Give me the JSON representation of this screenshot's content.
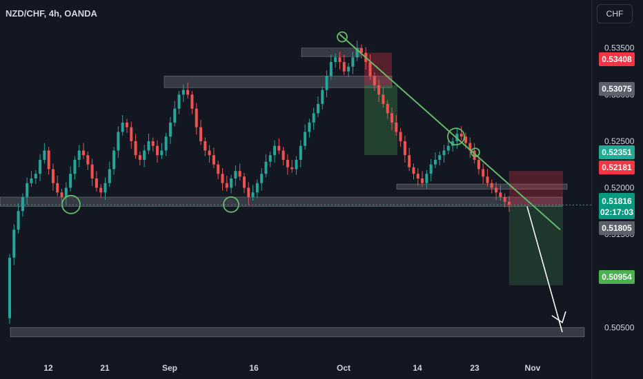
{
  "header": {
    "title": "NZD/CHF, 4h, OANDA"
  },
  "currency_button": "CHF",
  "colors": {
    "bg": "#131722",
    "up": "#26a69a",
    "down": "#ef5350",
    "trendline": "#66bb6a"
  },
  "chart_data": {
    "type": "candlestick",
    "title": "NZD/CHF, 4h, OANDA",
    "y_unit": "CHF",
    "ylim": [
      0.5028,
      0.5372
    ],
    "y_ticks": [
      "0.53500",
      "0.53000",
      "0.52500",
      "0.52000",
      "0.51500",
      "0.51000",
      "0.50500"
    ],
    "x_ticks": [
      "12",
      "21",
      "Sep",
      "16",
      "Oct",
      "14",
      "23",
      "Nov"
    ],
    "closes": [
      0.5125,
      0.5155,
      0.5175,
      0.519,
      0.5205,
      0.521,
      0.5215,
      0.523,
      0.524,
      0.522,
      0.5205,
      0.5195,
      0.519,
      0.52,
      0.5215,
      0.523,
      0.524,
      0.5235,
      0.5225,
      0.521,
      0.52,
      0.5195,
      0.5205,
      0.522,
      0.524,
      0.526,
      0.527,
      0.5265,
      0.525,
      0.5235,
      0.523,
      0.524,
      0.525,
      0.5245,
      0.5235,
      0.524,
      0.5255,
      0.527,
      0.5285,
      0.53,
      0.5305,
      0.53,
      0.5285,
      0.5265,
      0.525,
      0.524,
      0.5235,
      0.5225,
      0.5215,
      0.5205,
      0.52,
      0.521,
      0.5218,
      0.5212,
      0.52,
      0.519,
      0.5195,
      0.5205,
      0.5215,
      0.5228,
      0.5235,
      0.5245,
      0.524,
      0.523,
      0.5222,
      0.522,
      0.523,
      0.5245,
      0.526,
      0.527,
      0.528,
      0.529,
      0.5305,
      0.532,
      0.5335,
      0.534,
      0.5335,
      0.5325,
      0.533,
      0.534,
      0.535,
      0.5345,
      0.5335,
      0.532,
      0.531,
      0.53,
      0.529,
      0.528,
      0.527,
      0.526,
      0.525,
      0.5235,
      0.5222,
      0.5215,
      0.521,
      0.5205,
      0.5215,
      0.5225,
      0.523,
      0.5235,
      0.524,
      0.5245,
      0.525,
      0.5258,
      0.5255,
      0.5248,
      0.524,
      0.523,
      0.522,
      0.5212,
      0.5205,
      0.52,
      0.5195,
      0.519,
      0.5185,
      0.5182
    ],
    "markers": {
      "current_price": "0.51816",
      "countdown": "02:17:03",
      "price_tags": [
        {
          "value": "0.53408",
          "color": "#f23645"
        },
        {
          "value": "0.53075",
          "color": "#5d606b"
        },
        {
          "value": "0.52351",
          "color": "#22ab94"
        },
        {
          "value": "0.52181",
          "color": "#f23645"
        },
        {
          "value": "0.51805",
          "color": "#5d606b"
        },
        {
          "value": "0.50954",
          "color": "#4caf50"
        }
      ]
    },
    "zones": [
      "0.53408-0.53500",
      "0.53075-0.53200",
      "0.51816-0.51900",
      "0.51985-0.52040",
      "0.50400-0.50500"
    ]
  }
}
